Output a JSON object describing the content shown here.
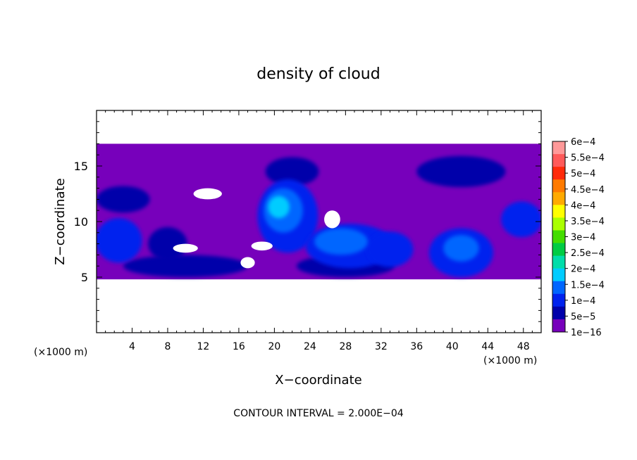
{
  "chart_data": {
    "type": "heatmap",
    "title": "density of cloud",
    "xlabel": "X−coordinate",
    "ylabel": "Z−coordinate",
    "x_unit": "(×1000 m)",
    "y_unit": "(×1000 m)",
    "xlim": [
      0,
      50
    ],
    "ylim": [
      0,
      20
    ],
    "x_ticks": [
      4,
      8,
      12,
      16,
      20,
      24,
      28,
      32,
      36,
      40,
      44,
      48
    ],
    "x_tick_labels": [
      "4",
      "8",
      "12",
      "16",
      "20",
      "24",
      "28",
      "32",
      "36",
      "40",
      "44",
      "48"
    ],
    "y_ticks": [
      5,
      10,
      15
    ],
    "y_tick_labels": [
      "5",
      "10",
      "15"
    ],
    "footer": "CONTOUR INTERVAL = 2.000E−04",
    "colorbar": {
      "labels": [
        "6e−4",
        "5.5e−4",
        "5e−4",
        "4.5e−4",
        "4e−4",
        "3.5e−4",
        "3e−4",
        "2.5e−4",
        "2e−4",
        "1.5e−4",
        "1e−4",
        "5e−5",
        "1e−16"
      ],
      "colors": [
        "#ff9999",
        "#ff5a5a",
        "#ff2a0a",
        "#ff7a00",
        "#ffaa00",
        "#ffff00",
        "#aaff00",
        "#44dd00",
        "#00cc44",
        "#00ddaa",
        "#00ccff",
        "#0066ff",
        "#0022ee",
        "#0000aa",
        "#7700bb"
      ]
    },
    "cloud_layer": {
      "z_bottom": 4.8,
      "z_top": 17.0
    },
    "blobs": [
      {
        "x": 21.5,
        "z": 10.5,
        "rx": 3.4,
        "rz": 3.3,
        "level": 2
      },
      {
        "x": 21.0,
        "z": 11.0,
        "rx": 2.2,
        "rz": 2.0,
        "level": 3
      },
      {
        "x": 20.5,
        "z": 11.3,
        "rx": 1.2,
        "rz": 1.0,
        "level": 4
      },
      {
        "x": 28.5,
        "z": 7.8,
        "rx": 5.0,
        "rz": 2.0,
        "level": 2
      },
      {
        "x": 27.5,
        "z": 8.2,
        "rx": 3.0,
        "rz": 1.2,
        "level": 3
      },
      {
        "x": 33.0,
        "z": 7.5,
        "rx": 2.6,
        "rz": 1.6,
        "level": 2
      },
      {
        "x": 41.0,
        "z": 7.2,
        "rx": 3.6,
        "rz": 2.2,
        "level": 2
      },
      {
        "x": 41.0,
        "z": 7.6,
        "rx": 2.0,
        "rz": 1.2,
        "level": 3
      },
      {
        "x": 47.8,
        "z": 10.2,
        "rx": 2.3,
        "rz": 1.6,
        "level": 2
      },
      {
        "x": 2.5,
        "z": 8.3,
        "rx": 2.6,
        "rz": 2.0,
        "level": 2
      },
      {
        "x": 8.0,
        "z": 8.0,
        "rx": 2.2,
        "rz": 1.5,
        "level": 1
      },
      {
        "x": 22.0,
        "z": 14.5,
        "rx": 3.0,
        "rz": 1.3,
        "level": 1
      },
      {
        "x": 41.0,
        "z": 14.5,
        "rx": 5.0,
        "rz": 1.4,
        "level": 1
      },
      {
        "x": 28.0,
        "z": 6.0,
        "rx": 5.5,
        "rz": 1.0,
        "level": 1
      },
      {
        "x": 10.0,
        "z": 6.0,
        "rx": 7.0,
        "rz": 1.0,
        "level": 1
      },
      {
        "x": 3.0,
        "z": 12.0,
        "rx": 3.0,
        "rz": 1.2,
        "level": 1
      }
    ],
    "holes": [
      {
        "x": 12.5,
        "z": 12.5,
        "rx": 1.6,
        "rz": 0.5
      },
      {
        "x": 10.0,
        "z": 7.6,
        "rx": 1.4,
        "rz": 0.4
      },
      {
        "x": 26.5,
        "z": 10.2,
        "rx": 0.9,
        "rz": 0.8
      },
      {
        "x": 18.6,
        "z": 7.8,
        "rx": 1.2,
        "rz": 0.4
      },
      {
        "x": 17.0,
        "z": 6.3,
        "rx": 0.8,
        "rz": 0.5
      }
    ]
  }
}
